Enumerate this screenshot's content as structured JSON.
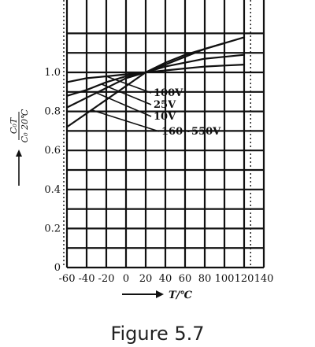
{
  "caption": "Figure 5.7",
  "chart_data": {
    "type": "line",
    "x_ticks": [
      "-60",
      "-40",
      "-20",
      "0",
      "20",
      "40",
      "60",
      "80",
      "100",
      "120",
      "140"
    ],
    "y_ticks": [
      "0",
      "0.2",
      "0.4",
      "0.6",
      "0.8",
      "1.0"
    ],
    "xlabel": "T/℃",
    "ylabel_num": "C₀T",
    "ylabel_den": "C₀ 20℃",
    "xlim": [
      -60,
      140
    ],
    "ylim": [
      0,
      1.2
    ],
    "grid": true,
    "series": [
      {
        "name": "100V",
        "x": [
          -60,
          -40,
          -20,
          0,
          20,
          40,
          60,
          80,
          100,
          120
        ],
        "y": [
          0.95,
          0.97,
          0.98,
          0.99,
          1.0,
          1.01,
          1.02,
          1.03,
          1.035,
          1.04
        ]
      },
      {
        "name": "25V",
        "x": [
          -60,
          -40,
          -20,
          0,
          20,
          40,
          60,
          80,
          100,
          120
        ],
        "y": [
          0.88,
          0.91,
          0.95,
          0.98,
          1.0,
          1.03,
          1.05,
          1.07,
          1.08,
          1.09
        ]
      },
      {
        "name": "10V",
        "x": [
          -60,
          -40,
          -20,
          0,
          20,
          40,
          60,
          80,
          100
        ],
        "y": [
          0.82,
          0.87,
          0.92,
          0.97,
          1.0,
          1.04,
          1.08,
          1.12,
          1.15
        ]
      },
      {
        "name": "160~550V",
        "x": [
          -60,
          -40,
          -20,
          0,
          20,
          40,
          60,
          80,
          100,
          120
        ],
        "y": [
          0.72,
          0.79,
          0.86,
          0.93,
          1.0,
          1.05,
          1.09,
          1.12,
          1.15,
          1.18
        ]
      }
    ]
  }
}
